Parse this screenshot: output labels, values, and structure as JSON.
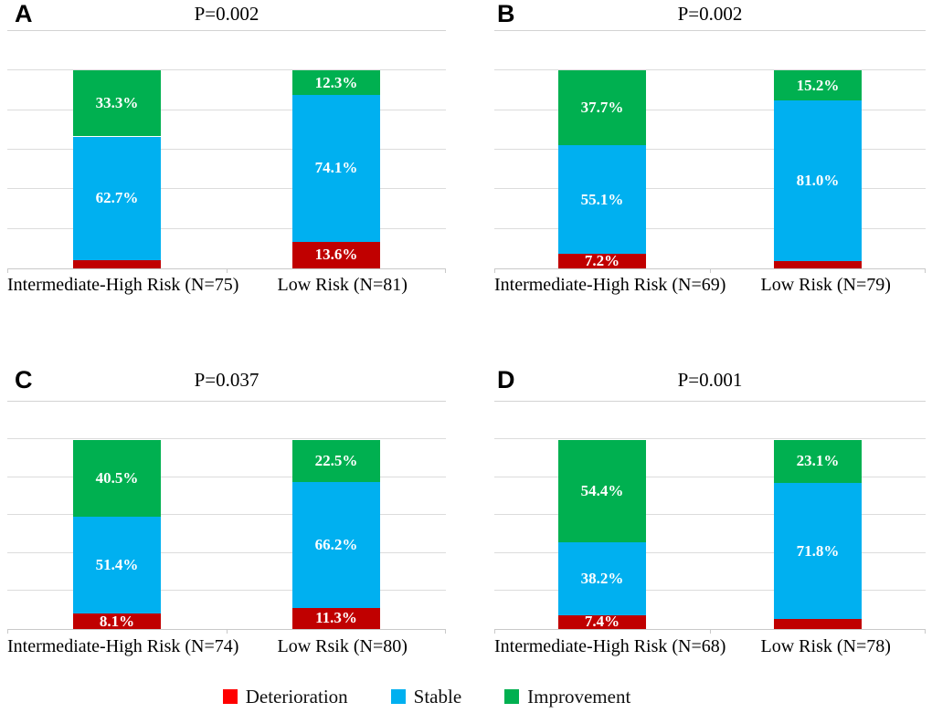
{
  "figure": {
    "background": "#ffffff",
    "grid_color": "#dcdcdc",
    "legend": {
      "position": "bottom-center",
      "items": [
        {
          "label": "Deterioration",
          "color": "#ff0000"
        },
        {
          "label": "Stable",
          "color": "#00b0f0"
        },
        {
          "label": "Improvement",
          "color": "#00b050"
        }
      ]
    }
  },
  "chart_data": [
    {
      "panel": "A",
      "type": "bar",
      "stacked": true,
      "title": "P=0.002",
      "categories": [
        "Intermediate-High Risk (N=75)",
        "Low Risk (N=81)"
      ],
      "series": [
        {
          "name": "Deterioration",
          "color": "#c00000",
          "values": [
            4.0,
            13.6
          ]
        },
        {
          "name": "Stable",
          "color": "#00b0f0",
          "values": [
            62.7,
            74.1
          ]
        },
        {
          "name": "Improvement",
          "color": "#00b050",
          "values": [
            33.3,
            12.3
          ]
        }
      ],
      "ylim": [
        0,
        120
      ],
      "gridline_step": 20,
      "grid": true,
      "y_axis_labels": false,
      "value_suffix": "%"
    },
    {
      "panel": "B",
      "type": "bar",
      "stacked": true,
      "title": "P=0.002",
      "categories": [
        "Intermediate-High Risk (N=69)",
        "Low Risk (N=79)"
      ],
      "series": [
        {
          "name": "Deterioration",
          "color": "#c00000",
          "values": [
            7.2,
            3.8
          ]
        },
        {
          "name": "Stable",
          "color": "#00b0f0",
          "values": [
            55.1,
            81.0
          ]
        },
        {
          "name": "Improvement",
          "color": "#00b050",
          "values": [
            37.7,
            15.2
          ]
        }
      ],
      "ylim": [
        0,
        120
      ],
      "gridline_step": 20,
      "grid": true,
      "y_axis_labels": false,
      "value_suffix": "%"
    },
    {
      "panel": "C",
      "type": "bar",
      "stacked": true,
      "title": "P=0.037",
      "categories": [
        "Intermediate-High Risk (N=74)",
        "Low Rsik (N=80)"
      ],
      "series": [
        {
          "name": "Deterioration",
          "color": "#c00000",
          "values": [
            8.1,
            11.3
          ]
        },
        {
          "name": "Stable",
          "color": "#00b0f0",
          "values": [
            51.4,
            66.2
          ]
        },
        {
          "name": "Improvement",
          "color": "#00b050",
          "values": [
            40.5,
            22.5
          ]
        }
      ],
      "ylim": [
        0,
        120
      ],
      "gridline_step": 20,
      "grid": true,
      "y_axis_labels": false,
      "value_suffix": "%"
    },
    {
      "panel": "D",
      "type": "bar",
      "stacked": true,
      "title": "P=0.001",
      "categories": [
        "Intermediate-High Risk (N=68)",
        "Low Risk (N=78)"
      ],
      "series": [
        {
          "name": "Deterioration",
          "color": "#c00000",
          "values": [
            7.4,
            5.1
          ]
        },
        {
          "name": "Stable",
          "color": "#00b0f0",
          "values": [
            38.2,
            71.8
          ]
        },
        {
          "name": "Improvement",
          "color": "#00b050",
          "values": [
            54.4,
            23.1
          ]
        }
      ],
      "ylim": [
        0,
        120
      ],
      "gridline_step": 20,
      "grid": true,
      "y_axis_labels": false,
      "value_suffix": "%"
    }
  ]
}
